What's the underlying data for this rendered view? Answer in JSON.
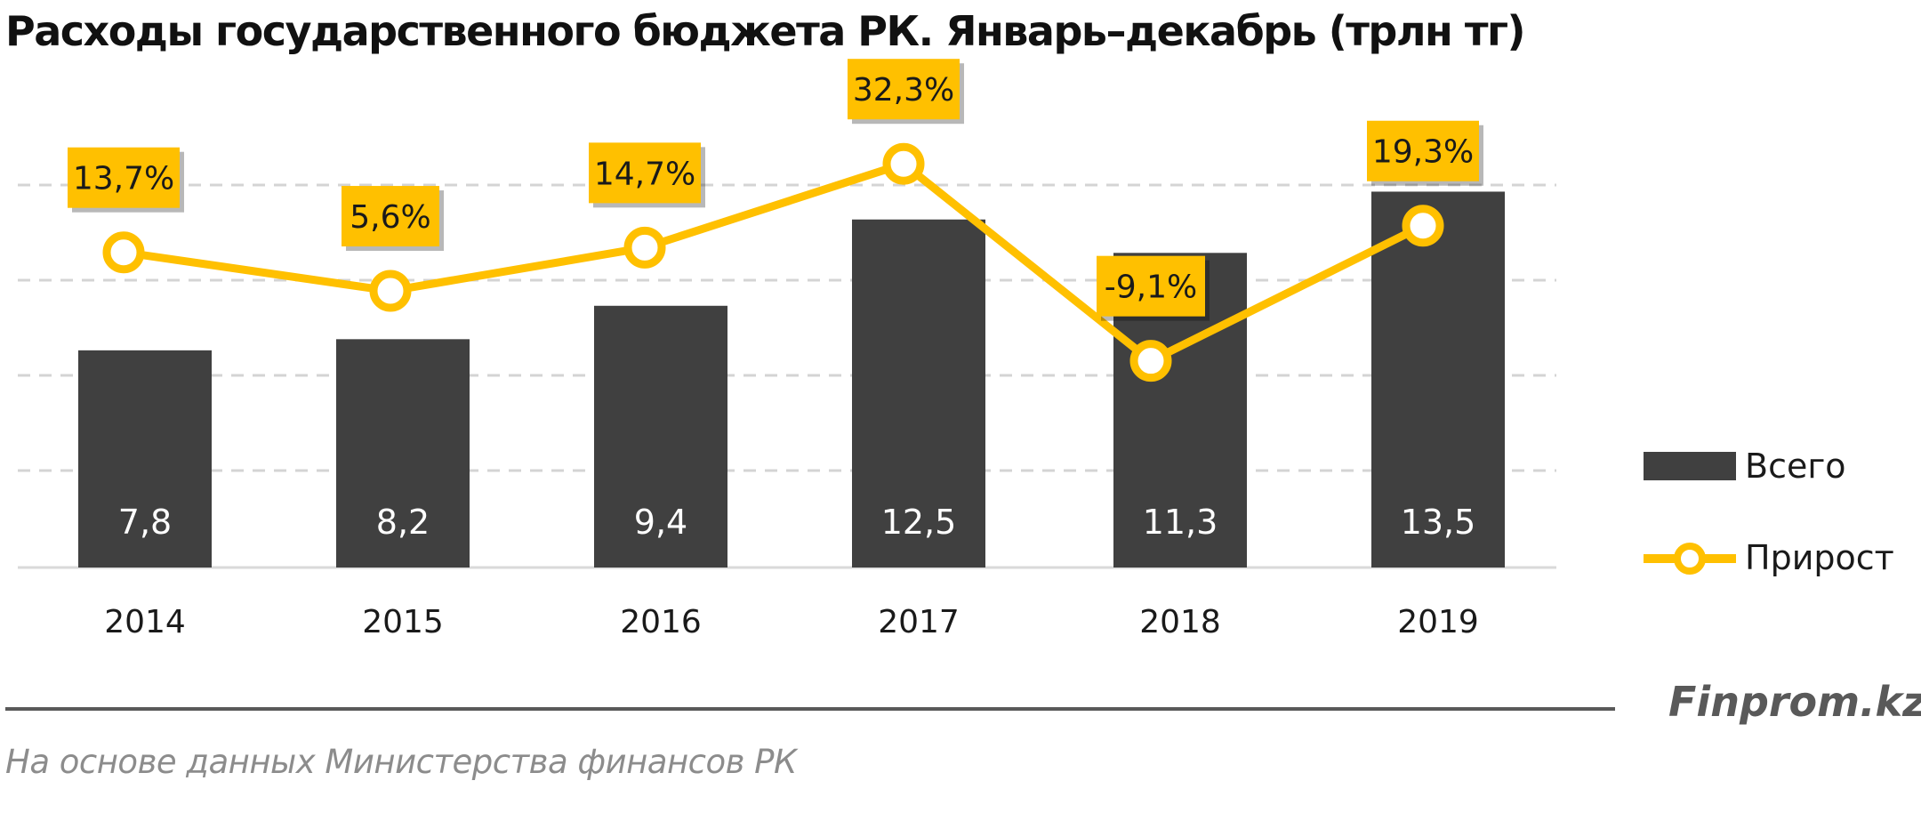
{
  "chart_data": {
    "type": "bar",
    "title": "Расходы государственного бюджета РК. Январь–декабрь (трлн тг)",
    "categories": [
      "2014",
      "2015",
      "2016",
      "2017",
      "2018",
      "2019"
    ],
    "series": [
      {
        "name": "Всего",
        "type": "bar",
        "values": [
          7.8,
          8.2,
          9.4,
          12.5,
          11.3,
          13.5
        ],
        "labels": [
          "7,8",
          "8,2",
          "9,4",
          "12,5",
          "11,3",
          "13,5"
        ]
      },
      {
        "name": "Прирост",
        "type": "line",
        "values": [
          13.7,
          5.6,
          14.7,
          32.3,
          -9.1,
          19.3
        ],
        "labels": [
          "13,7%",
          "5,6%",
          "14,7%",
          "32,3%",
          "-9,1%",
          "19,3%"
        ]
      }
    ],
    "grid": true,
    "legend_position": "right",
    "colors": {
      "bar": "#404040",
      "line": "#FFC000",
      "bar_label": "#ffffff",
      "tick": "#1a1a1a"
    }
  },
  "brand": "Finprom.kz",
  "source": "На основе данных Министерства финансов РК"
}
